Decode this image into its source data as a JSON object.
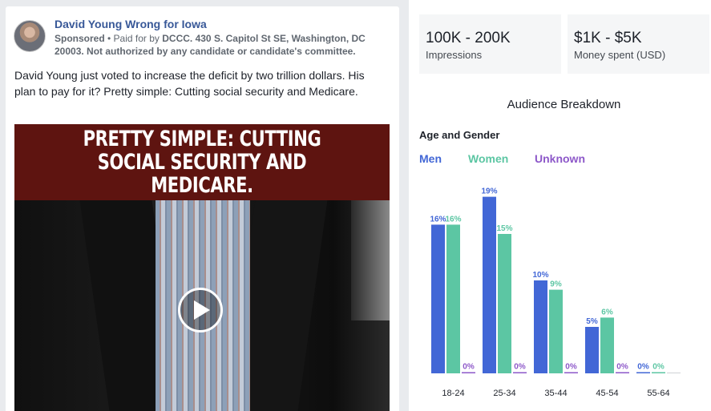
{
  "ad": {
    "page_name": "David Young Wrong for Iowa",
    "sponsored": "Sponsored",
    "paid_for_prefix": " • Paid for by ",
    "paid_for_by": "DCCC. 430 S. Capitol St SE, Washington, DC 20003. Not authorized by any candidate or candidate's committee.",
    "text": "David Young just voted to increase the deficit by two trillion dollars. His plan to pay for it? Pretty simple: Cutting social security and Medicare.",
    "video_banner": "PRETTY SIMPLE: CUTTING SOCIAL SECURITY AND MEDICARE.",
    "play_icon": "play-icon"
  },
  "stats": {
    "impressions_value": "100K - 200K",
    "impressions_label": "Impressions",
    "spend_value": "$1K - $5K",
    "spend_label": "Money spent (USD)"
  },
  "breakdown": {
    "title": "Audience Breakdown",
    "chart_title": "Age and Gender"
  },
  "colors": {
    "men": "#4267d6",
    "women": "#5cc6a3",
    "unknown": "#8d58c9",
    "link": "#385898",
    "banner": "#5e1410"
  },
  "chart_data": {
    "type": "bar",
    "title": "Age and Gender",
    "categories": [
      "18-24",
      "25-34",
      "35-44",
      "45-54",
      "55-64"
    ],
    "series": [
      {
        "name": "Men",
        "values": [
          16,
          19,
          10,
          5,
          0
        ]
      },
      {
        "name": "Women",
        "values": [
          16,
          15,
          9,
          6,
          0
        ]
      },
      {
        "name": "Unknown",
        "values": [
          0,
          0,
          0,
          0,
          null
        ]
      }
    ],
    "value_suffix": "%",
    "ylim": [
      0,
      20
    ],
    "grid": false,
    "legend": "top-left"
  }
}
